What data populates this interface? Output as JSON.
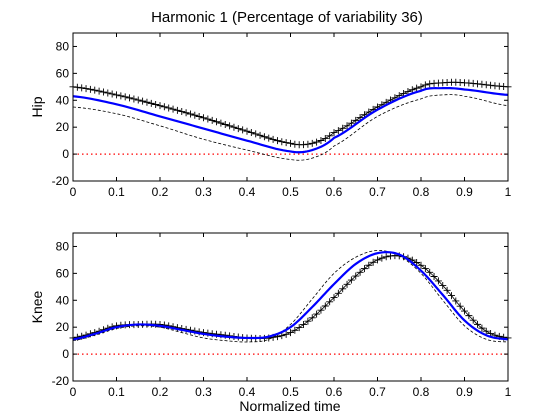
{
  "chart_data": {
    "type": "line",
    "title": "Harmonic 1 (Percentage of variability 36)",
    "xlabel": "Normalized time",
    "xlim": [
      0,
      1
    ],
    "xticks": [
      "0",
      "0.1",
      "0.2",
      "0.3",
      "0.4",
      "0.5",
      "0.6",
      "0.7",
      "0.8",
      "0.9",
      "1"
    ],
    "colors": {
      "mean": "#0000ff",
      "plus": "#000000",
      "minus": "#000000",
      "zero": "#ff0000"
    },
    "panels": [
      {
        "ylabel": "Hip",
        "ylim": [
          -20,
          90
        ],
        "yticks": [
          "-20",
          "0",
          "20",
          "40",
          "60",
          "80"
        ],
        "x": [
          0,
          0.1,
          0.2,
          0.3,
          0.4,
          0.5,
          0.55,
          0.6,
          0.7,
          0.8,
          0.85,
          0.9,
          1.0
        ],
        "series": [
          {
            "values": [
              43,
              37,
              28,
              19,
              10,
              2,
              3,
              12,
              33,
              47,
              49,
              48,
              44
            ]
          },
          {
            "values": [
              50,
              44,
              36,
              27,
              17,
              8,
              8,
              16,
              35,
              50,
              53,
              53,
              50
            ]
          },
          {
            "values": [
              35,
              30,
              21,
              11,
              3,
              -4,
              -3,
              6,
              28,
              41,
              44,
              43,
              36
            ]
          }
        ],
        "zero_line": 0
      },
      {
        "ylabel": "Knee",
        "ylim": [
          -20,
          90
        ],
        "yticks": [
          "-20",
          "0",
          "20",
          "40",
          "60",
          "80"
        ],
        "x": [
          0,
          0.05,
          0.1,
          0.15,
          0.2,
          0.25,
          0.3,
          0.35,
          0.4,
          0.45,
          0.5,
          0.55,
          0.6,
          0.65,
          0.7,
          0.75,
          0.8,
          0.85,
          0.9,
          0.95,
          1.0
        ],
        "series": [
          {
            "values": [
              11,
              15,
              20,
              22,
              21,
              18,
              15,
              13,
              12,
              13,
              20,
              35,
              52,
              67,
              75,
              74,
              62,
              44,
              25,
              14,
              11
            ]
          },
          {
            "values": [
              12,
              16,
              21,
              22,
              22,
              19,
              16,
              14,
              12,
              12,
              16,
              27,
              42,
              58,
              70,
              73,
              66,
              51,
              32,
              17,
              12
            ]
          },
          {
            "values": [
              10,
              14,
              19,
              21,
              20,
              16,
              12,
              10,
              9,
              11,
              22,
              41,
              60,
              72,
              77,
              73,
              60,
              40,
              21,
              11,
              9
            ]
          }
        ],
        "zero_line": 0
      }
    ]
  }
}
